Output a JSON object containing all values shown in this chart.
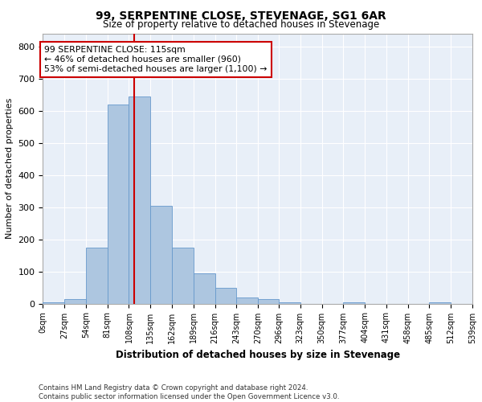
{
  "title": "99, SERPENTINE CLOSE, STEVENAGE, SG1 6AR",
  "subtitle": "Size of property relative to detached houses in Stevenage",
  "xlabel": "Distribution of detached houses by size in Stevenage",
  "ylabel": "Number of detached properties",
  "bar_color": "#adc6e0",
  "bar_edge_color": "#6699cc",
  "background_color": "#e8eff8",
  "grid_color": "#ffffff",
  "annotation_box_color": "#cc0000",
  "property_line_color": "#cc0000",
  "property_value": 115,
  "annotation_text": "99 SERPENTINE CLOSE: 115sqm\n← 46% of detached houses are smaller (960)\n53% of semi-detached houses are larger (1,100) →",
  "footer_line1": "Contains HM Land Registry data © Crown copyright and database right 2024.",
  "footer_line2": "Contains public sector information licensed under the Open Government Licence v3.0.",
  "bin_edges": [
    0,
    27,
    54,
    81,
    108,
    135,
    162,
    189,
    216,
    243,
    270,
    296,
    323,
    350,
    377,
    404,
    431,
    458,
    485,
    512,
    539
  ],
  "bin_labels": [
    "0sqm",
    "27sqm",
    "54sqm",
    "81sqm",
    "108sqm",
    "135sqm",
    "162sqm",
    "189sqm",
    "216sqm",
    "243sqm",
    "270sqm",
    "296sqm",
    "323sqm",
    "350sqm",
    "377sqm",
    "404sqm",
    "431sqm",
    "458sqm",
    "485sqm",
    "512sqm",
    "539sqm"
  ],
  "bar_heights": [
    5,
    15,
    175,
    620,
    645,
    305,
    175,
    95,
    50,
    20,
    15,
    5,
    0,
    0,
    5,
    0,
    0,
    0,
    5,
    0
  ],
  "ylim": [
    0,
    840
  ],
  "yticks": [
    0,
    100,
    200,
    300,
    400,
    500,
    600,
    700,
    800
  ]
}
